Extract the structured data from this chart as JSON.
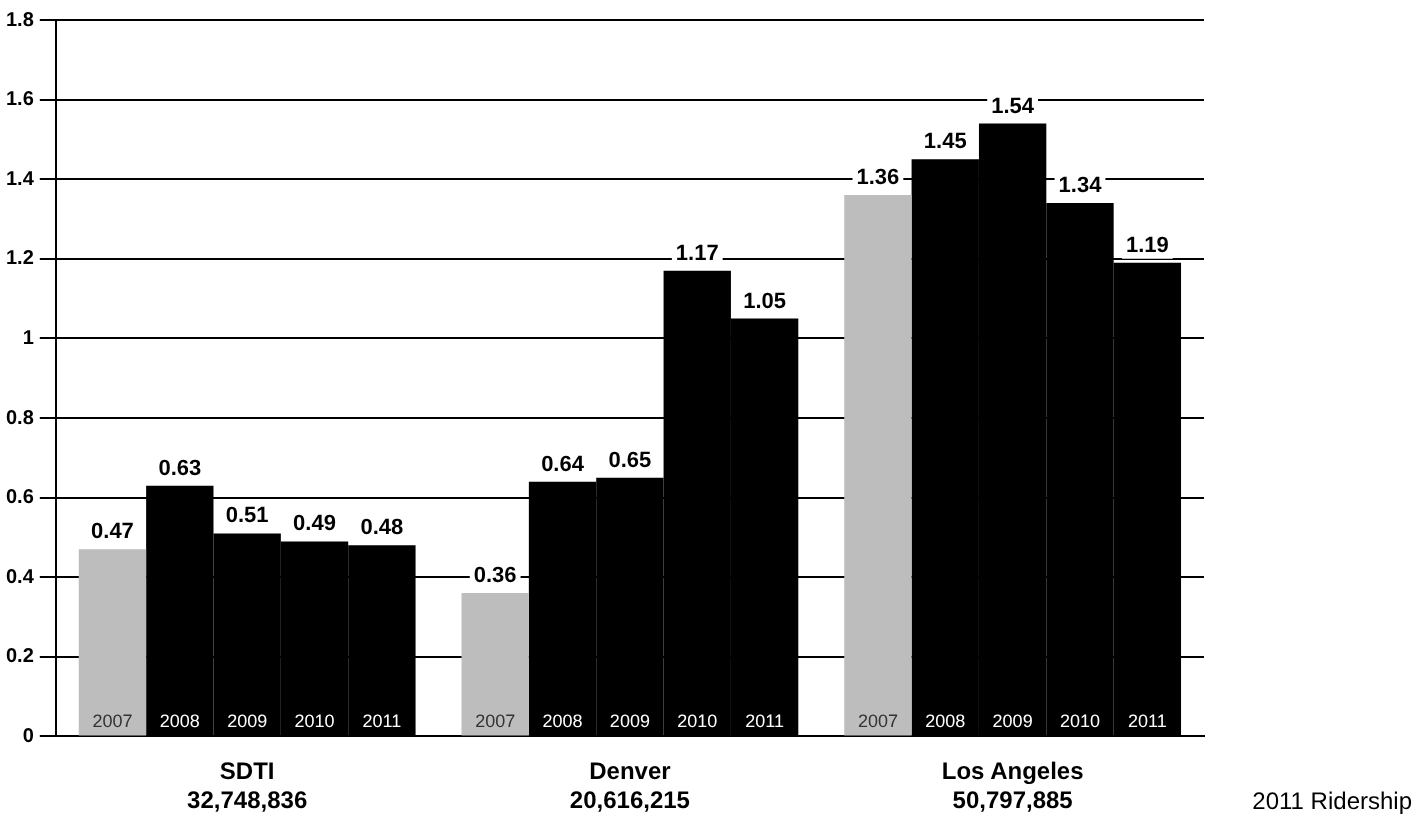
{
  "chart_data": {
    "type": "bar",
    "categories": [
      "SDTI\n32,748,836",
      "Denver\n20,616,215",
      "Los Angeles\n50,797,885"
    ],
    "series": [
      {
        "name": "2007",
        "color": "#bdbdbd",
        "values": [
          0.47,
          0.36,
          1.36
        ]
      },
      {
        "name": "2008",
        "color": "#000000",
        "values": [
          0.63,
          0.64,
          1.45
        ]
      },
      {
        "name": "2009",
        "color": "#000000",
        "values": [
          0.51,
          0.65,
          1.54
        ]
      },
      {
        "name": "2010",
        "color": "#000000",
        "values": [
          0.49,
          1.17,
          1.34
        ]
      },
      {
        "name": "2011",
        "color": "#000000",
        "values": [
          0.48,
          1.05,
          1.19
        ]
      }
    ],
    "ylim": [
      0,
      1.8
    ],
    "yticks": [
      0,
      0.2,
      0.4,
      0.6,
      0.8,
      1,
      1.2,
      1.4,
      1.6,
      1.8
    ],
    "grid": "y",
    "legend": false,
    "data_labels": true,
    "annotations": [
      "2011 Ridership"
    ]
  }
}
